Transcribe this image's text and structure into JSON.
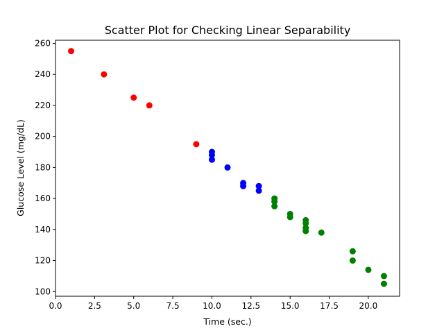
{
  "chart_data": {
    "type": "scatter",
    "title": "Scatter Plot for Checking Linear Separability",
    "xlabel": "Time (sec.)",
    "ylabel": "Glucose Level (mg/dL)",
    "xlim": [
      0,
      22
    ],
    "ylim": [
      97,
      262
    ],
    "xticks": [
      "0.0",
      "2.5",
      "5.0",
      "7.5",
      "10.0",
      "12.5",
      "15.0",
      "17.5",
      "20.0"
    ],
    "xtick_values": [
      0,
      2.5,
      5,
      7.5,
      10,
      12.5,
      15,
      17.5,
      20
    ],
    "yticks": [
      "100",
      "120",
      "140",
      "160",
      "180",
      "200",
      "220",
      "240",
      "260"
    ],
    "ytick_values": [
      100,
      120,
      140,
      160,
      180,
      200,
      220,
      240,
      260
    ],
    "grid": false,
    "series": [
      {
        "color": "#ff0000",
        "points": [
          [
            1,
            255
          ],
          [
            3.1,
            240
          ],
          [
            5,
            225
          ],
          [
            6,
            220
          ],
          [
            9,
            195
          ]
        ]
      },
      {
        "color": "#0000ff",
        "points": [
          [
            10,
            190
          ],
          [
            10,
            188
          ],
          [
            10,
            185
          ],
          [
            11,
            180
          ],
          [
            12,
            170
          ],
          [
            12,
            168
          ],
          [
            13,
            168
          ],
          [
            13,
            165
          ]
        ]
      },
      {
        "color": "#008000",
        "points": [
          [
            14,
            160
          ],
          [
            14,
            158
          ],
          [
            14,
            155
          ],
          [
            15,
            150
          ],
          [
            15,
            148
          ],
          [
            16,
            146
          ],
          [
            16,
            144
          ],
          [
            16,
            141
          ],
          [
            16,
            139
          ],
          [
            17,
            138
          ],
          [
            19,
            126
          ],
          [
            19,
            120
          ],
          [
            20,
            114
          ],
          [
            21,
            110
          ],
          [
            21,
            105
          ]
        ]
      }
    ]
  }
}
